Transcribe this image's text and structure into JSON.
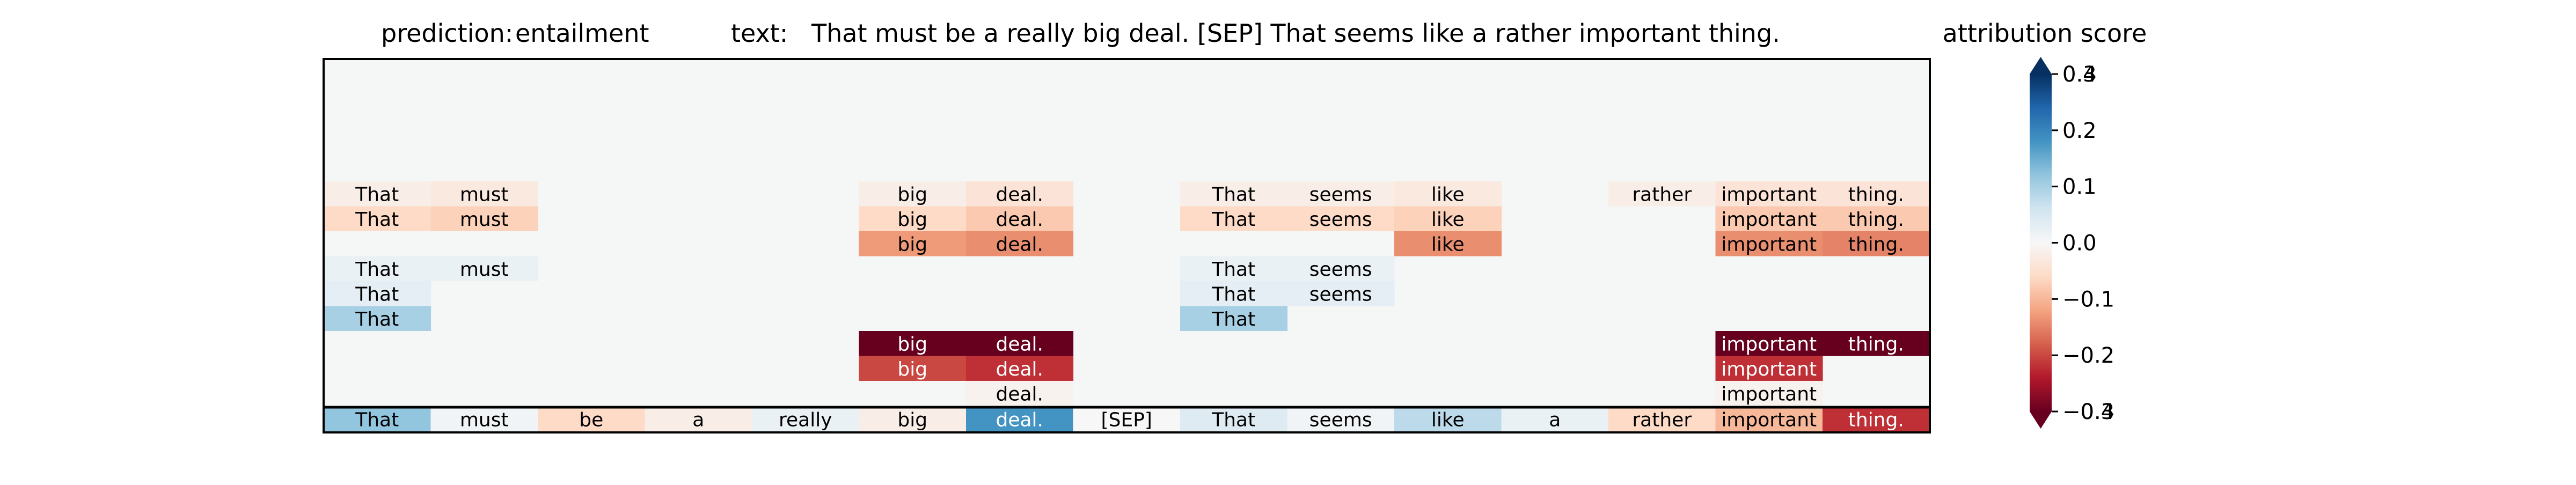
{
  "chart_data": {
    "type": "heatmap",
    "header": {
      "prediction_label": "prediction:",
      "prediction_value": "entailment",
      "text_label": "text:",
      "text_value": "That must be a really big deal. [SEP] That seems like a rather important thing.",
      "colorbar_title": "attribution score"
    },
    "tokens": [
      "That",
      "must",
      "be",
      "a",
      "really",
      "big",
      "deal.",
      "[SEP]",
      "That",
      "seems",
      "like",
      "a",
      "rather",
      "important",
      "thing."
    ],
    "scores": [
      0.12,
      0.01,
      -0.06,
      -0.02,
      0.02,
      -0.02,
      0.18,
      0.0,
      0.04,
      0.01,
      0.08,
      0.02,
      -0.06,
      -0.1,
      -0.22
    ],
    "explanations": [
      [
        -0.02,
        -0.03,
        null,
        null,
        null,
        -0.02,
        -0.04,
        null,
        -0.02,
        -0.02,
        -0.03,
        null,
        -0.02,
        -0.04,
        -0.04
      ],
      [
        -0.06,
        -0.07,
        null,
        null,
        null,
        -0.06,
        -0.08,
        null,
        -0.06,
        -0.06,
        -0.07,
        null,
        null,
        -0.08,
        -0.08
      ],
      [
        null,
        null,
        null,
        null,
        null,
        -0.13,
        -0.14,
        null,
        null,
        null,
        -0.14,
        null,
        null,
        -0.14,
        -0.15
      ],
      [
        0.02,
        0.02,
        null,
        null,
        null,
        null,
        null,
        null,
        0.02,
        0.02,
        null,
        null,
        null,
        null,
        null
      ],
      [
        0.03,
        null,
        null,
        null,
        null,
        null,
        null,
        null,
        0.03,
        0.03,
        null,
        null,
        null,
        null,
        null
      ],
      [
        0.1,
        null,
        null,
        null,
        null,
        null,
        null,
        null,
        0.1,
        null,
        null,
        null,
        null,
        null,
        null
      ],
      [
        null,
        null,
        null,
        null,
        null,
        -0.36,
        -0.4,
        null,
        null,
        null,
        null,
        null,
        null,
        -0.38,
        -0.4
      ],
      [
        null,
        null,
        null,
        null,
        null,
        -0.2,
        -0.22,
        null,
        null,
        null,
        null,
        null,
        null,
        -0.22,
        null
      ],
      [
        null,
        null,
        null,
        null,
        null,
        null,
        -0.01,
        null,
        null,
        null,
        null,
        null,
        null,
        -0.01,
        null
      ]
    ],
    "colorbar": {
      "vmin": -0.3,
      "vmax": 0.3,
      "ticks": [
        0.3,
        0.2,
        0.1,
        0.0,
        -0.1,
        -0.2,
        -0.3
      ],
      "tick_labels": [
        "0.3",
        "0.2",
        "0.1",
        "0.0",
        "−0.1",
        "−0.2",
        "−0.3"
      ],
      "overlap_tick_labels": [
        "0.4",
        "−0.4"
      ],
      "colormap": "RdBu",
      "extend": "both"
    }
  }
}
